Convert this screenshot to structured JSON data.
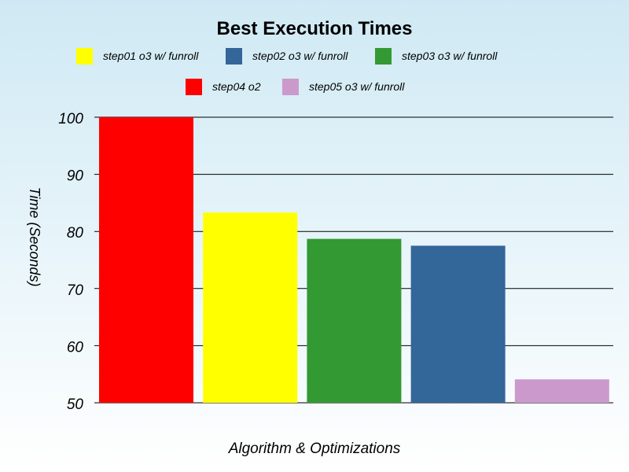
{
  "chart_data": {
    "type": "bar",
    "title": "Best Execution Times",
    "xlabel": "Algorithm & Optimizations",
    "ylabel": "Time (Seconds)",
    "ylim": [
      50,
      100
    ],
    "yticks": [
      50,
      60,
      70,
      80,
      90,
      100
    ],
    "grid": true,
    "legend_position": "top",
    "series": [
      {
        "name": "step04 o2",
        "value": 100,
        "color": "#ff0000"
      },
      {
        "name": "step01 o3 w/ funroll",
        "value": 83.3,
        "color": "#ffff00"
      },
      {
        "name": "step03 o3 w/ funroll",
        "value": 78.7,
        "color": "#339933"
      },
      {
        "name": "step02 o3 w/ funroll",
        "value": 77.5,
        "color": "#336699"
      },
      {
        "name": "step05 o3 w/ funroll",
        "value": 54.1,
        "color": "#cc99cc"
      }
    ],
    "legend_order": [
      "step01 o3 w/ funroll",
      "step02 o3 w/ funroll",
      "step03 o3 w/ funroll",
      "step04 o2",
      "step05 o3 w/ funroll"
    ]
  }
}
